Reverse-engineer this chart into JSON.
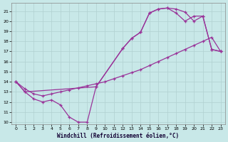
{
  "xlabel": "Windchill (Refroidissement éolien,°C)",
  "bg_color": "#c8e8e8",
  "grid_color": "#b0d0d0",
  "line_color": "#993399",
  "xlim": [
    -0.5,
    23.5
  ],
  "ylim": [
    9.8,
    21.8
  ],
  "yticks": [
    10,
    11,
    12,
    13,
    14,
    15,
    16,
    17,
    18,
    19,
    20,
    21
  ],
  "xticks": [
    0,
    1,
    2,
    3,
    4,
    5,
    6,
    7,
    8,
    9,
    10,
    11,
    12,
    13,
    14,
    15,
    16,
    17,
    18,
    19,
    20,
    21,
    22,
    23
  ],
  "line1_x": [
    0,
    1,
    2,
    3,
    4,
    5,
    6,
    7,
    8,
    9,
    12,
    13,
    14,
    15,
    16,
    17,
    18,
    19,
    20,
    21,
    22,
    23
  ],
  "line1_y": [
    14,
    13,
    12.3,
    12,
    12.2,
    11.7,
    10.5,
    10.0,
    10.0,
    13.5,
    17.3,
    18.3,
    18.9,
    20.8,
    21.2,
    21.3,
    21.2,
    20.9,
    20.0,
    20.5,
    17.2,
    17.0
  ],
  "line2_x": [
    0,
    1,
    2,
    3,
    4,
    5,
    6,
    7,
    8,
    9,
    10,
    11,
    12,
    13,
    14,
    15,
    16,
    17,
    18,
    19,
    20,
    21,
    22,
    23
  ],
  "line2_y": [
    14.0,
    13.3,
    12.8,
    12.6,
    12.8,
    13.0,
    13.2,
    13.4,
    13.6,
    13.8,
    14.0,
    14.3,
    14.6,
    14.9,
    15.2,
    15.6,
    16.0,
    16.4,
    16.8,
    17.2,
    17.6,
    18.0,
    18.4,
    17.0
  ],
  "line3_x": [
    0,
    1,
    9,
    12,
    13,
    14,
    15,
    16,
    17,
    18,
    19,
    20,
    21,
    22,
    23
  ],
  "line3_y": [
    14.0,
    13.0,
    13.5,
    17.3,
    18.3,
    18.9,
    20.8,
    21.2,
    21.3,
    20.8,
    20.0,
    20.5,
    20.5,
    17.2,
    17.0
  ]
}
